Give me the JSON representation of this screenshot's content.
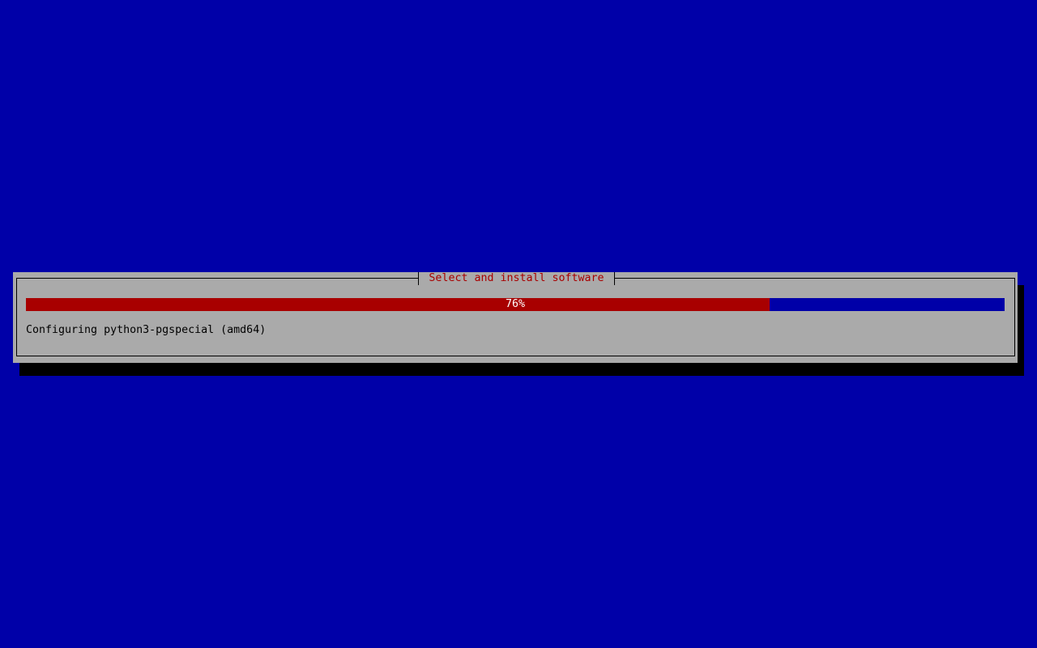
{
  "dialog": {
    "title": "Select and install software",
    "progress_percent": 76,
    "progress_label": "76%",
    "status_text": "Configuring python3-pgspecial (amd64)"
  },
  "colors": {
    "background": "#0000a8",
    "dialog": "#aaaaaa",
    "progress_fill": "#a80000",
    "title_text": "#a80000"
  }
}
